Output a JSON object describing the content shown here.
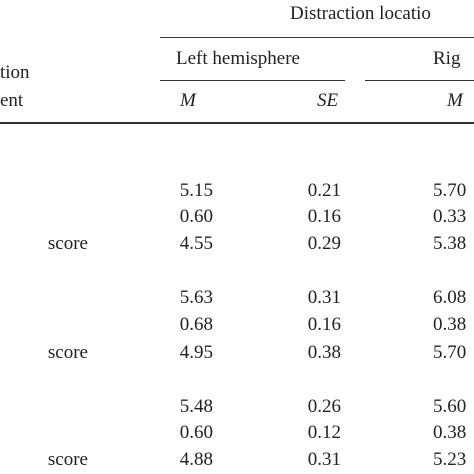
{
  "header": {
    "spanner": "Distraction locatio",
    "stub": [
      "tion",
      "ent"
    ],
    "groups": [
      "Left hemisphere",
      "Rig"
    ],
    "subheaders": [
      "M",
      "SE",
      "M"
    ]
  },
  "rows": [
    {
      "values": [
        "5.15",
        "0.21",
        "5.70"
      ]
    },
    {
      "values": [
        "0.60",
        "0.16",
        "0.33"
      ]
    },
    {
      "label": "score",
      "values": [
        "4.55",
        "0.29",
        "5.38"
      ]
    },
    {
      "values": [
        "5.63",
        "0.31",
        "6.08"
      ]
    },
    {
      "values": [
        "0.68",
        "0.16",
        "0.38"
      ]
    },
    {
      "label": "score",
      "values": [
        "4.95",
        "0.38",
        "5.70"
      ]
    },
    {
      "values": [
        "5.48",
        "0.26",
        "5.60"
      ]
    },
    {
      "values": [
        "0.60",
        "0.12",
        "0.38"
      ]
    },
    {
      "label": "score",
      "values": [
        "4.88",
        "0.31",
        "5.23"
      ]
    }
  ]
}
